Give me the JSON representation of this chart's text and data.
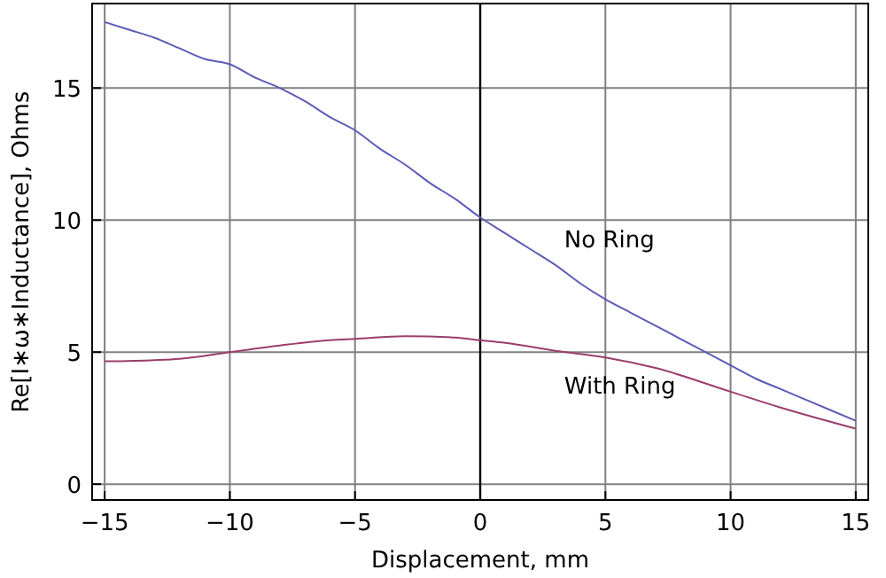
{
  "chart_data": {
    "type": "line",
    "xlabel": "Displacement, mm",
    "ylabel": "Re[I∗ω∗Inductance], Ohms",
    "xlim": [
      -15.5,
      15.5
    ],
    "ylim": [
      -0.6,
      18.2
    ],
    "xticks": [
      -15,
      -10,
      -5,
      0,
      5,
      10,
      15
    ],
    "yticks": [
      0,
      5,
      10,
      15
    ],
    "grid": true,
    "ref_lines": [
      {
        "axis": "x",
        "value": 0,
        "color": "#000000"
      }
    ],
    "series": [
      {
        "name": "No Ring",
        "color": "#5c5cb8",
        "x": [
          -15,
          -14,
          -13,
          -12,
          -11,
          -10,
          -9,
          -8,
          -7,
          -6,
          -5,
          -4,
          -3,
          -2,
          -1,
          0,
          1,
          2,
          3,
          4,
          5,
          6,
          7,
          8,
          9,
          10,
          11,
          12,
          13,
          14,
          15
        ],
        "values": [
          17.5,
          17.2,
          16.9,
          16.5,
          16.1,
          15.9,
          15.4,
          15.0,
          14.5,
          13.9,
          13.4,
          12.7,
          12.1,
          11.4,
          10.8,
          10.1,
          9.5,
          8.9,
          8.3,
          7.6,
          7.0,
          6.5,
          6.0,
          5.5,
          5.0,
          4.5,
          4.0,
          3.6,
          3.2,
          2.8,
          2.4
        ]
      },
      {
        "name": "With Ring",
        "color": "#9a3e6e",
        "x": [
          -15,
          -13,
          -12,
          -10,
          -8,
          -6,
          -5,
          -3,
          -1,
          0,
          1,
          3,
          5,
          7,
          10,
          12,
          15
        ],
        "values": [
          4.65,
          4.7,
          4.75,
          5.0,
          5.25,
          5.45,
          5.5,
          5.6,
          5.55,
          5.45,
          5.35,
          5.05,
          4.8,
          4.4,
          3.5,
          2.9,
          2.1
        ]
      }
    ]
  }
}
